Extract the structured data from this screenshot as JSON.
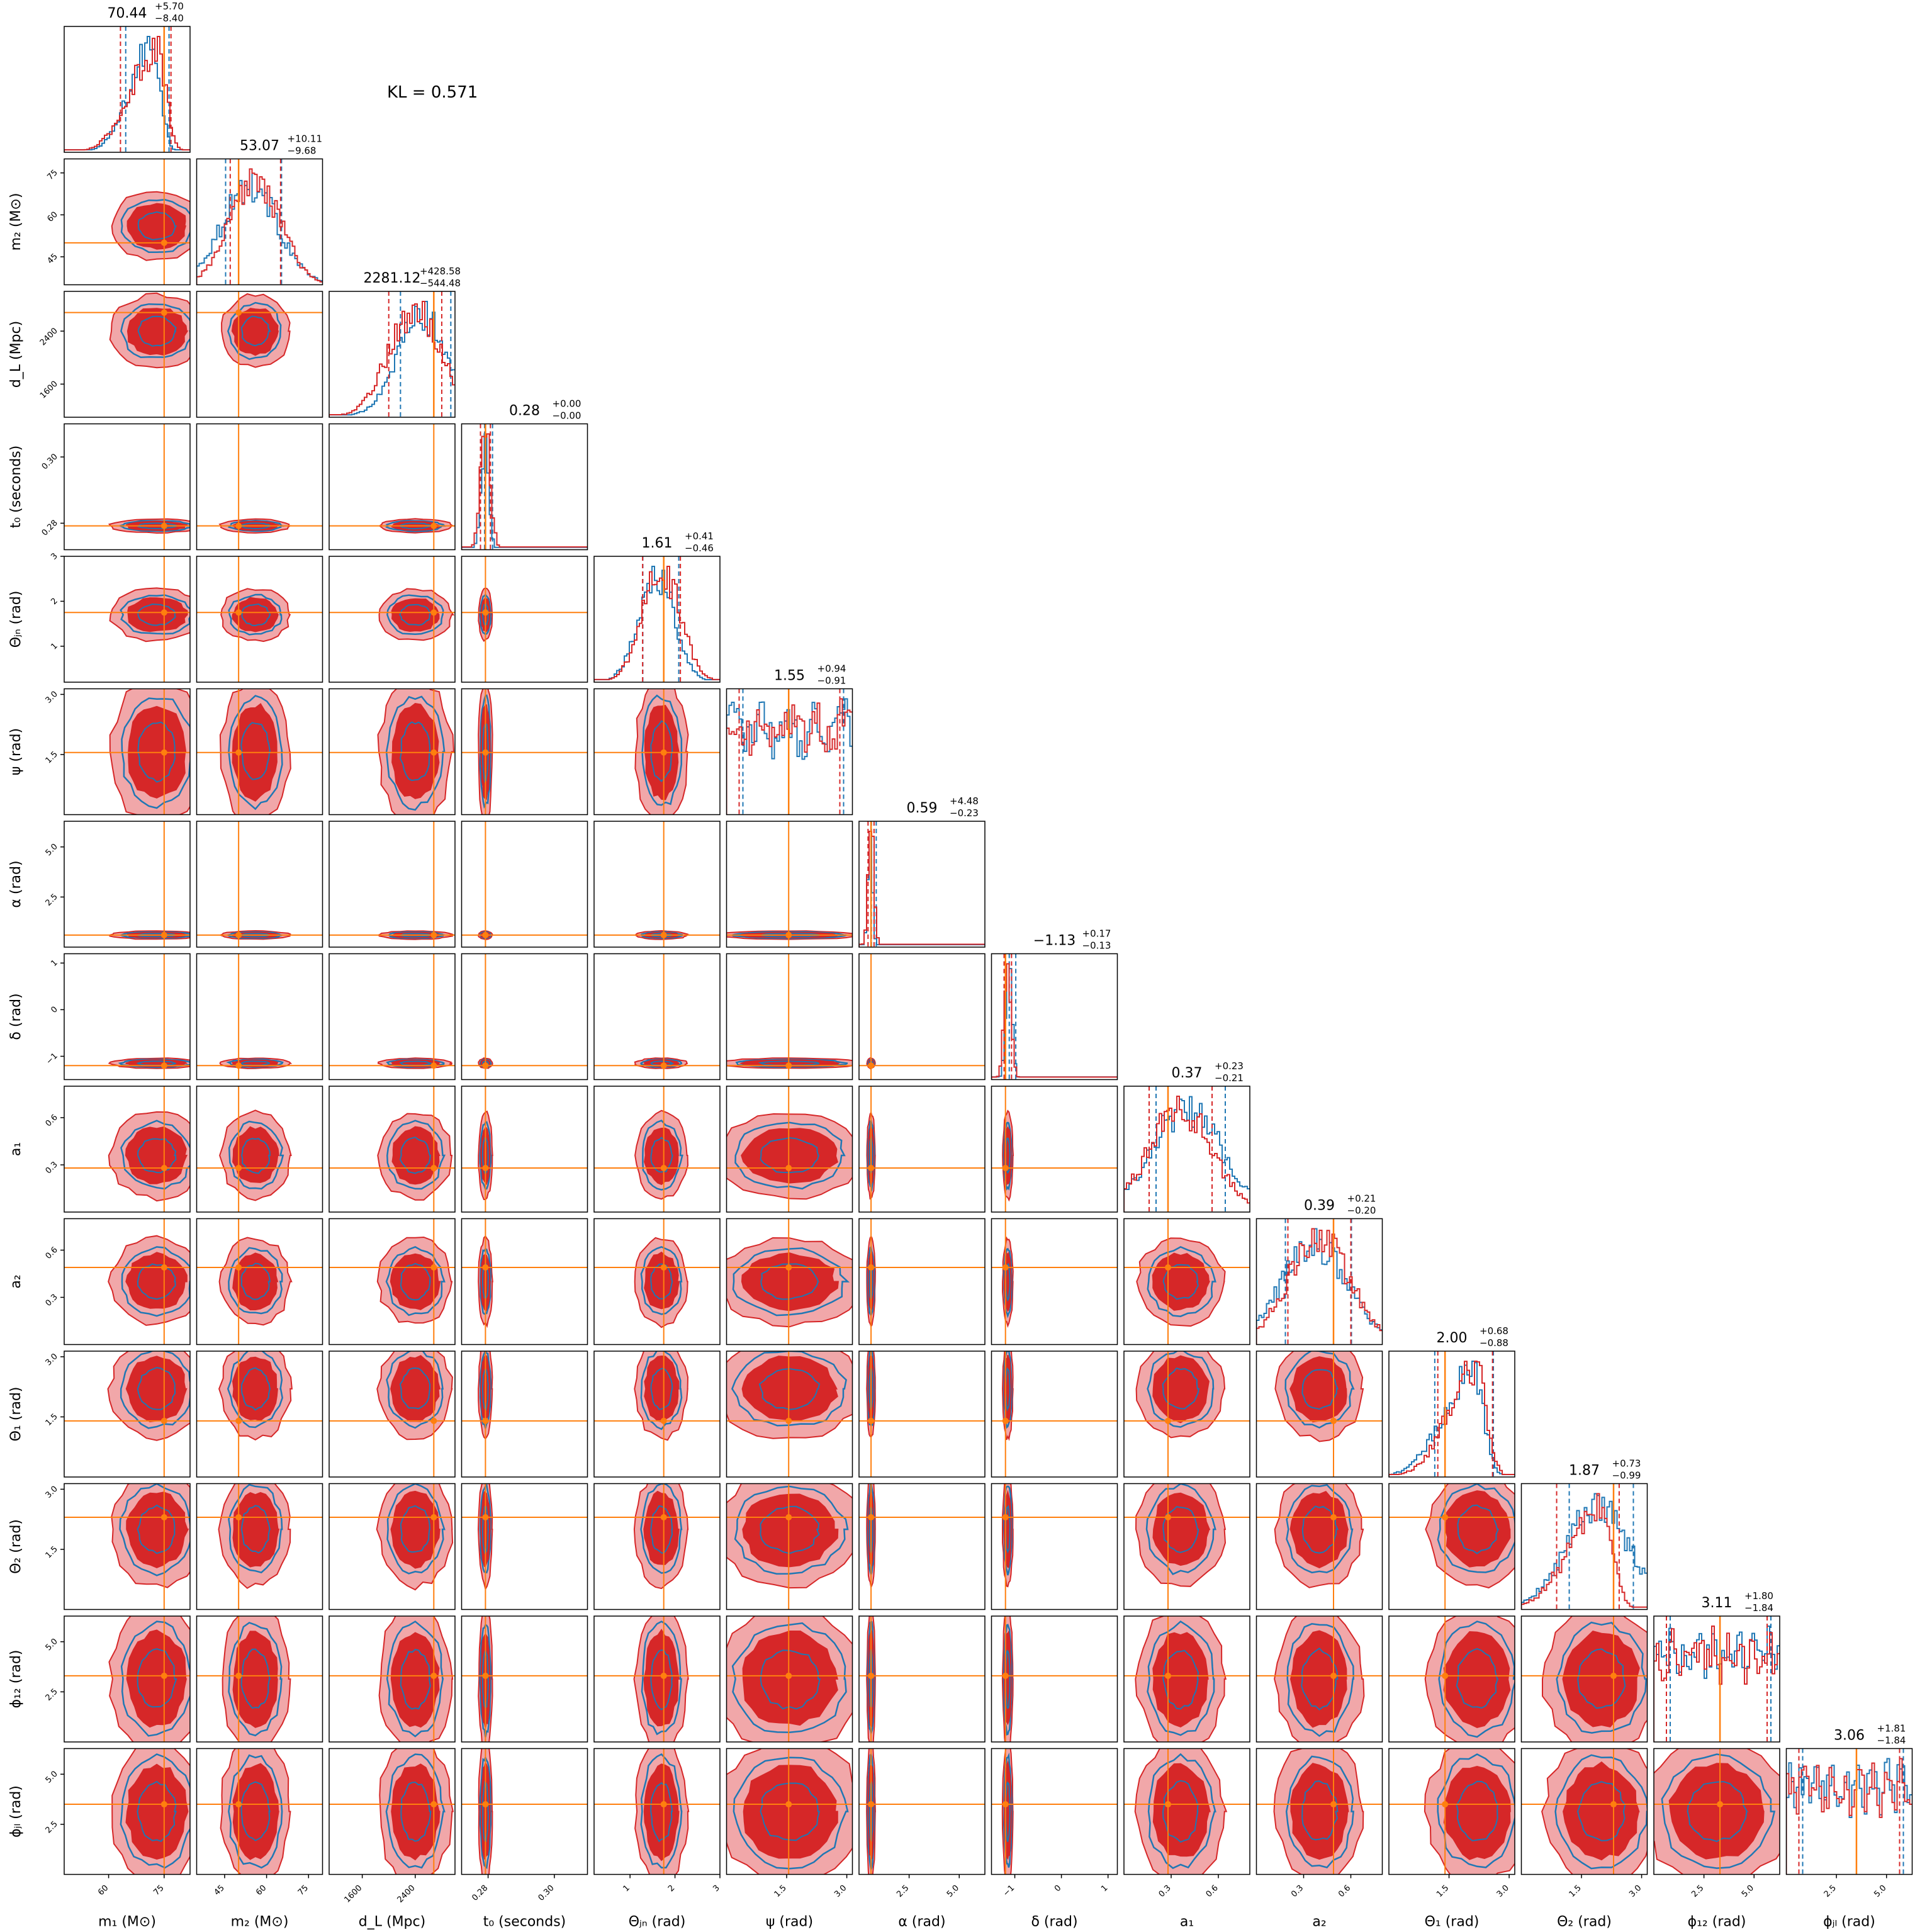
{
  "annotation": "KL = 0.571",
  "colors": {
    "red": "#d62728",
    "red_light": "#f1a7a9",
    "blue": "#1f77b4",
    "truth": "#ff7f0e",
    "frame": "#000000"
  },
  "chart_data": {
    "type": "corner",
    "parameters": [
      {
        "label": "m₁ (M⊙)",
        "title": "70.44",
        "plus": "+5.70",
        "minus": "−8.40",
        "ticks": [
          "60",
          "75"
        ],
        "range": [
          48,
          82
        ],
        "truth": 75,
        "red": {
          "mean": 73,
          "sd": 7,
          "skew": "left"
        },
        "blue": {
          "mean": 72,
          "sd": 6,
          "skew": "left"
        }
      },
      {
        "label": "m₂ (M⊙)",
        "title": "53.07",
        "plus": "+10.11",
        "minus": "−9.68",
        "ticks": [
          "45",
          "60",
          "75"
        ],
        "range": [
          35,
          80
        ],
        "truth": 50,
        "red": {
          "mean": 56,
          "sd": 9
        },
        "blue": {
          "mean": 54,
          "sd": 10
        }
      },
      {
        "label": "d_L (Mpc)",
        "title": "2281.12",
        "plus": "+428.58",
        "minus": "−544.48",
        "ticks": [
          "1600",
          "2400"
        ],
        "range": [
          1100,
          3000
        ],
        "truth": 2680,
        "red": {
          "mean": 2400,
          "sd": 400
        },
        "blue": {
          "mean": 2500,
          "sd": 380
        }
      },
      {
        "label": "t₀ (seconds)",
        "title": "0.28",
        "plus": "+0.00",
        "minus": "−0.00",
        "ticks": [
          "0.28",
          "0.30"
        ],
        "range": [
          0.272,
          0.31
        ],
        "truth": 0.2792,
        "red": {
          "mean": 0.2792,
          "sd": 0.0015
        },
        "blue": {
          "mean": 0.279,
          "sd": 0.0012
        }
      },
      {
        "label": "Θⱼₙ (rad)",
        "title": "1.61",
        "plus": "+0.41",
        "minus": "−0.46",
        "ticks": [
          "1",
          "2",
          "3"
        ],
        "range": [
          0.2,
          3.0
        ],
        "truth": 1.75,
        "red": {
          "mean": 1.7,
          "sd": 0.42
        },
        "blue": {
          "mean": 1.6,
          "sd": 0.4
        }
      },
      {
        "label": "ψ (rad)",
        "title": "1.55",
        "plus": "+0.94",
        "minus": "−0.91",
        "ticks": [
          "1.5",
          "3.0"
        ],
        "range": [
          0.0,
          3.14
        ],
        "truth": 1.55,
        "red": {
          "uniform": true
        },
        "blue": {
          "uniform": true
        }
      },
      {
        "label": "α (rad)",
        "title": "0.59",
        "plus": "+4.48",
        "minus": "−0.23",
        "ticks": [
          "2.5",
          "5.0"
        ],
        "range": [
          0.0,
          6.28
        ],
        "truth": 0.6,
        "red": {
          "mean": 0.6,
          "sd": 0.15
        },
        "blue": {
          "mean": 0.55,
          "sd": 0.12
        }
      },
      {
        "label": "δ (rad)",
        "title": "−1.13",
        "plus": "+0.17",
        "minus": "−0.13",
        "ticks": [
          "−1",
          "0",
          "1"
        ],
        "range": [
          -1.5,
          1.2
        ],
        "truth": -1.2,
        "red": {
          "mean": -1.15,
          "sd": 0.08
        },
        "blue": {
          "mean": -1.13,
          "sd": 0.07
        }
      },
      {
        "label": "a₁",
        "title": "0.37",
        "plus": "+0.23",
        "minus": "−0.21",
        "ticks": [
          "0.3",
          "0.6"
        ],
        "range": [
          0.0,
          0.8
        ],
        "truth": 0.28,
        "red": {
          "mean": 0.36,
          "sd": 0.2
        },
        "blue": {
          "mean": 0.4,
          "sd": 0.22
        }
      },
      {
        "label": "a₂",
        "title": "0.39",
        "plus": "+0.21",
        "minus": "−0.20",
        "ticks": [
          "0.3",
          "0.6"
        ],
        "range": [
          0.0,
          0.8
        ],
        "truth": 0.49,
        "red": {
          "mean": 0.4,
          "sd": 0.2
        },
        "blue": {
          "mean": 0.37,
          "sd": 0.21
        }
      },
      {
        "label": "Θ₁ (rad)",
        "title": "2.00",
        "plus": "+0.68",
        "minus": "−0.88",
        "ticks": [
          "1.5",
          "3.0"
        ],
        "range": [
          0.0,
          3.14
        ],
        "truth": 1.4,
        "red": {
          "mean": 2.2,
          "sd": 0.7,
          "skew": "left"
        },
        "blue": {
          "mean": 2.1,
          "sd": 0.75,
          "skew": "left"
        }
      },
      {
        "label": "Θ₂ (rad)",
        "title": "1.87",
        "plus": "+0.73",
        "minus": "−0.99",
        "ticks": [
          "1.5",
          "3.0"
        ],
        "range": [
          0.0,
          3.14
        ],
        "truth": 2.3,
        "red": {
          "mean": 2.0,
          "sd": 0.8,
          "skew": "left"
        },
        "blue": {
          "mean": 1.9,
          "sd": 0.8
        }
      },
      {
        "label": "ϕ₁₂ (rad)",
        "title": "3.11",
        "plus": "+1.80",
        "minus": "−1.84",
        "ticks": [
          "2.5",
          "5.0"
        ],
        "range": [
          0.0,
          6.28
        ],
        "truth": 3.3,
        "red": {
          "uniform": true
        },
        "blue": {
          "uniform": true
        }
      },
      {
        "label": "ϕⱼₗ (rad)",
        "title": "3.06",
        "plus": "+1.81",
        "minus": "−1.84",
        "ticks": [
          "2.5",
          "5.0"
        ],
        "range": [
          0.0,
          6.28
        ],
        "truth": 3.5,
        "red": {
          "uniform": true
        },
        "blue": {
          "uniform": true
        }
      }
    ]
  }
}
